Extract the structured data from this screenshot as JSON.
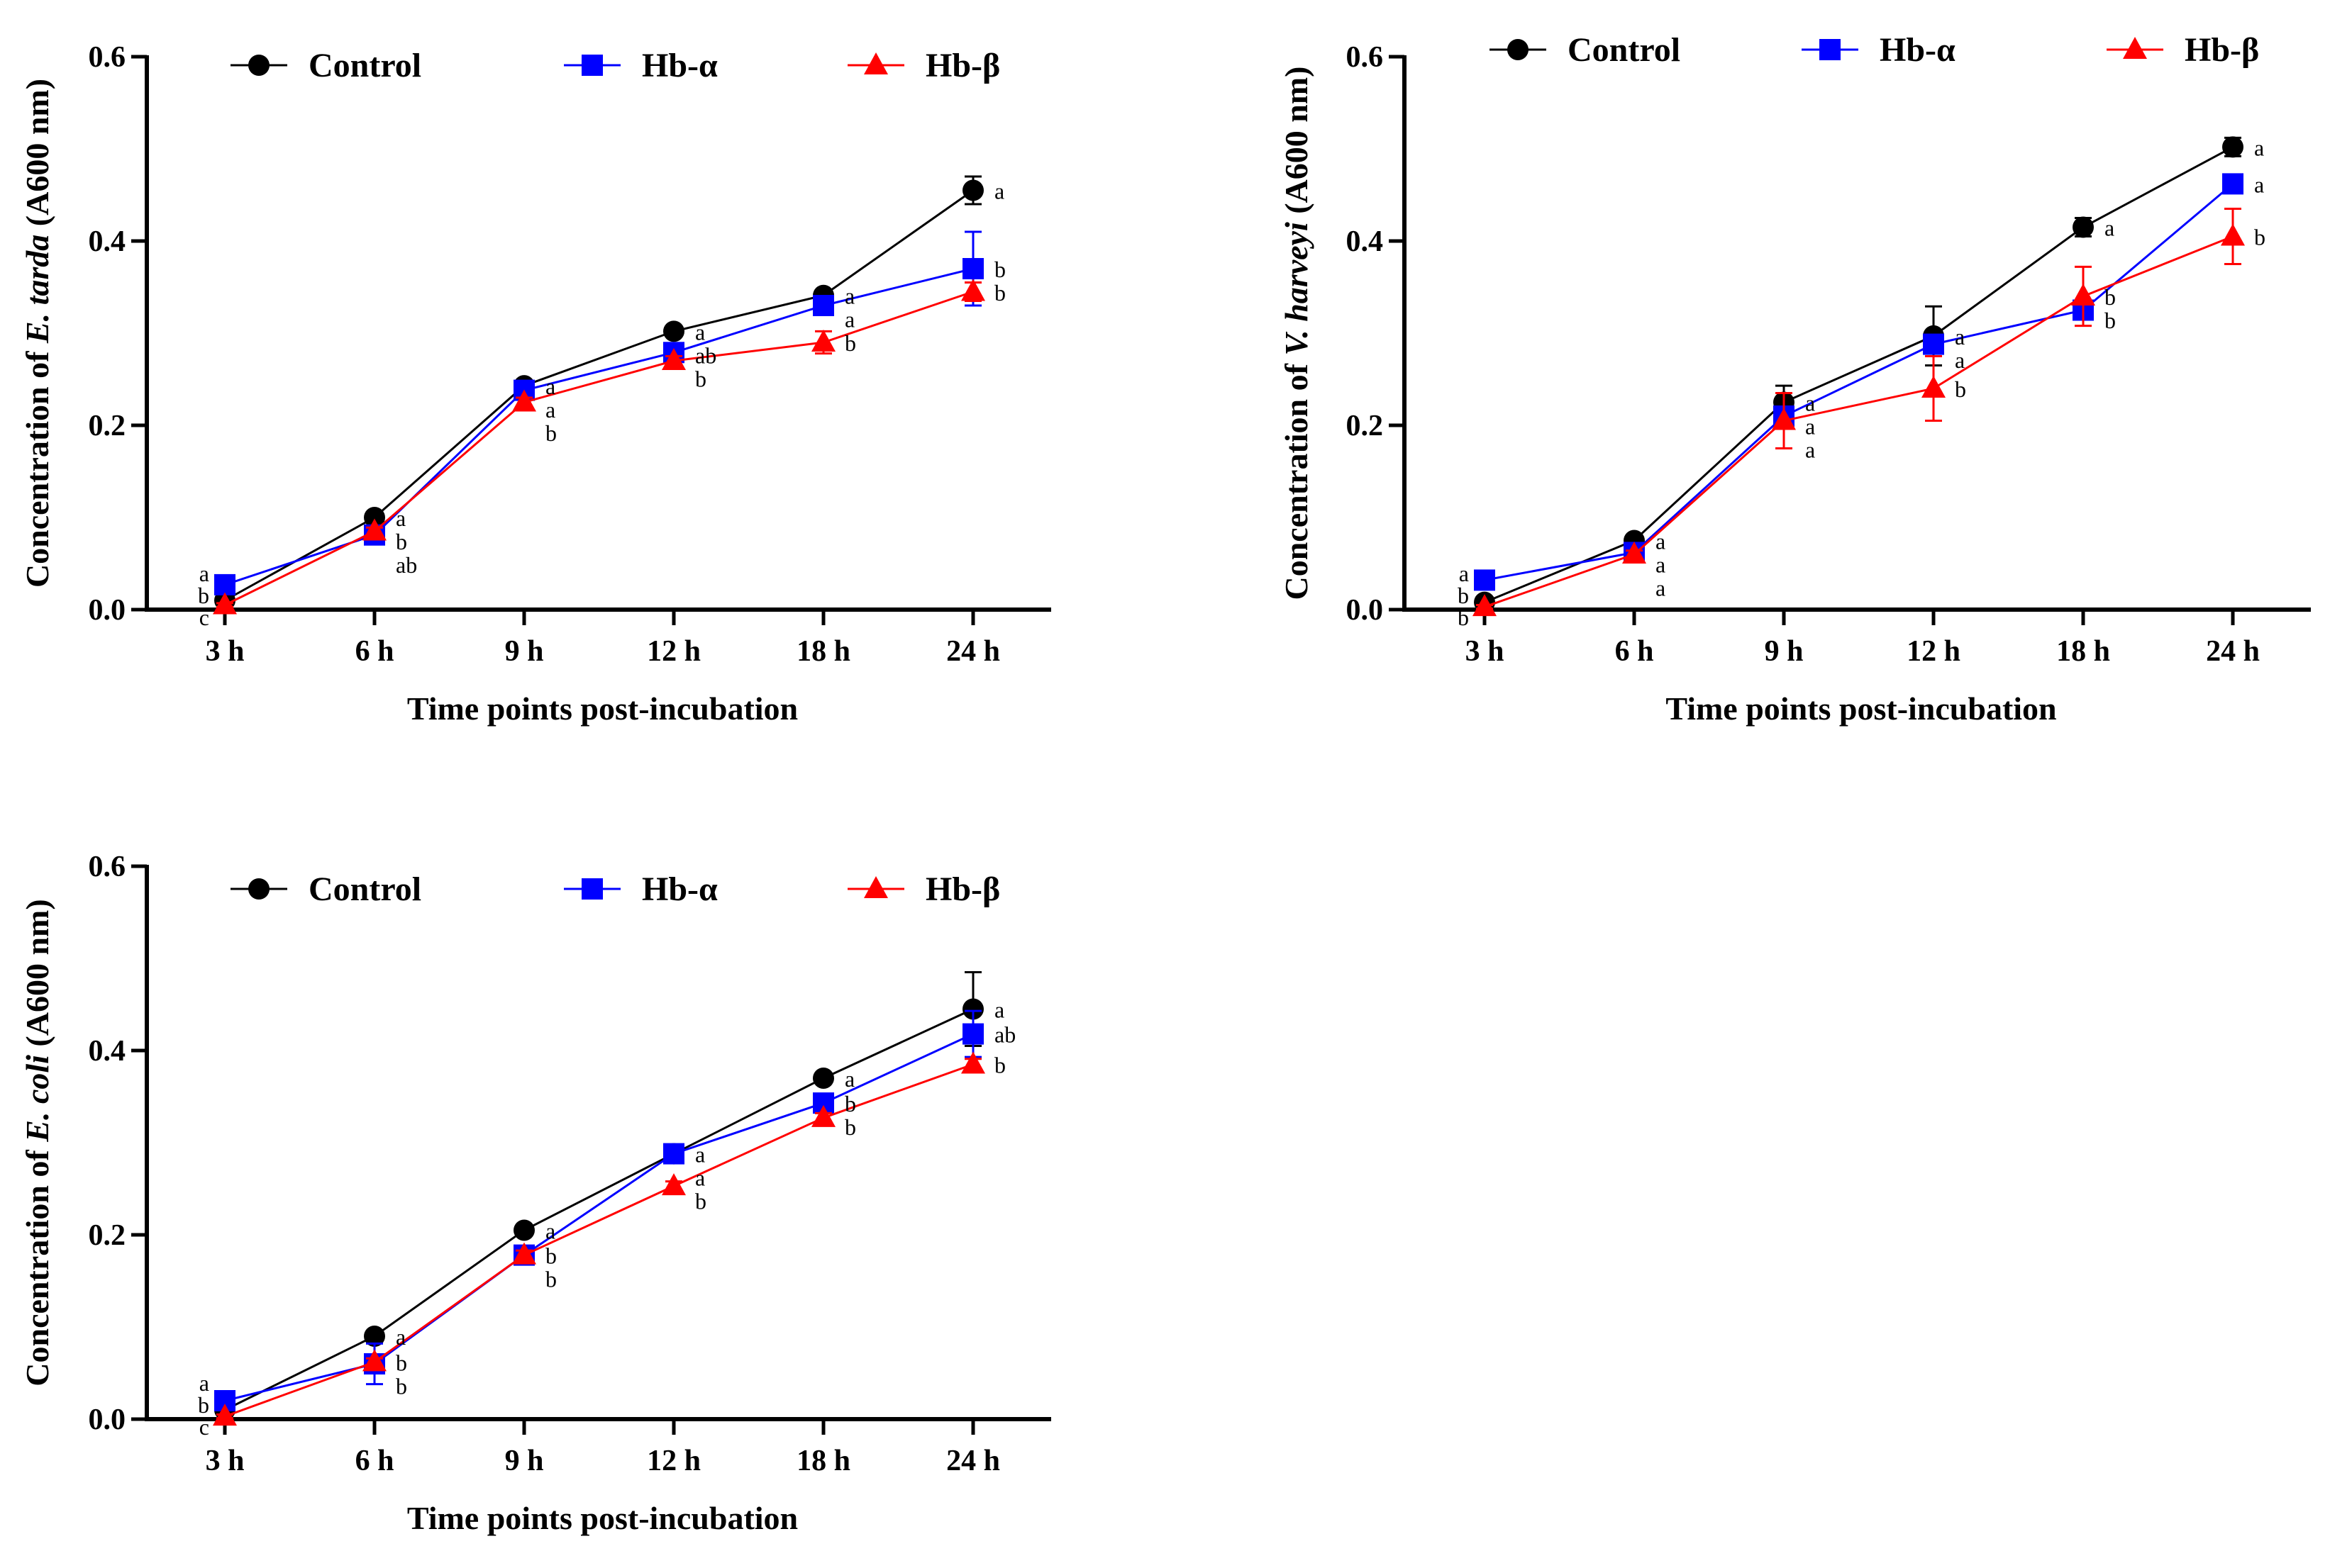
{
  "chart_data": [
    {
      "type": "line",
      "categories": [
        "3 h",
        "6 h",
        "9 h",
        "12 h",
        "18 h",
        "24 h"
      ],
      "xlabel": "Time points post-incubation",
      "ylabel_prefix": "Concentration of ",
      "ylabel_italic": "E. tarda",
      "ylabel_suffix": " (A600 nm)",
      "ylim": [
        0,
        0.6
      ],
      "yticks": [
        "0.0",
        "0.2",
        "0.4",
        "0.6"
      ],
      "series": [
        {
          "name": "Control",
          "color": "#000000",
          "marker": "circle",
          "values": [
            0.01,
            0.1,
            0.243,
            0.302,
            0.341,
            0.455
          ],
          "errors": [
            0.003,
            0.004,
            0.005,
            0.005,
            0.005,
            0.015
          ],
          "letters": [
            "a",
            "a",
            "a",
            "a",
            "a",
            "a"
          ]
        },
        {
          "name": "Hb-α",
          "color": "#0000ff",
          "marker": "square",
          "values": [
            0.027,
            0.081,
            0.238,
            0.279,
            0.33,
            0.37
          ],
          "errors": [
            0.003,
            0.004,
            0.005,
            0.006,
            0.006,
            0.04
          ],
          "letters": [
            "b",
            "ab",
            "a",
            "ab",
            "a",
            "b"
          ]
        },
        {
          "name": "Hb-β",
          "color": "#ff0000",
          "marker": "triangle",
          "values": [
            0.005,
            0.085,
            0.225,
            0.27,
            0.29,
            0.345
          ],
          "errors": [
            0.002,
            0.004,
            0.005,
            0.005,
            0.012,
            0.01
          ],
          "letters": [
            "c",
            "b",
            "b",
            "b",
            "b",
            "b"
          ]
        }
      ]
    },
    {
      "type": "line",
      "categories": [
        "3 h",
        "6 h",
        "9 h",
        "12 h",
        "18 h",
        "24 h"
      ],
      "xlabel": "Time points post-incubation",
      "ylabel_prefix": "Concentration of ",
      "ylabel_italic": "V. harveyi",
      "ylabel_suffix": " (A600 nm)",
      "ylim": [
        0,
        0.6
      ],
      "yticks": [
        "0.0",
        "0.2",
        "0.4",
        "0.6"
      ],
      "series": [
        {
          "name": "Control",
          "color": "#000000",
          "marker": "circle",
          "values": [
            0.008,
            0.075,
            0.225,
            0.297,
            0.415,
            0.502
          ],
          "errors": [
            0.003,
            0.004,
            0.018,
            0.032,
            0.01,
            0.01
          ],
          "letters": [
            "a",
            "a",
            "a",
            "a",
            "a",
            "a"
          ]
        },
        {
          "name": "Hb-α",
          "color": "#0000ff",
          "marker": "square",
          "values": [
            0.032,
            0.062,
            0.21,
            0.288,
            0.325,
            0.462
          ],
          "errors": [
            0.003,
            0.004,
            0.005,
            0.006,
            0.01,
            0.006
          ],
          "letters": [
            "b",
            "a",
            "a",
            "a",
            "b",
            "a"
          ]
        },
        {
          "name": "Hb-β",
          "color": "#ff0000",
          "marker": "triangle",
          "values": [
            0.003,
            0.06,
            0.205,
            0.24,
            0.34,
            0.405
          ],
          "errors": [
            0.002,
            0.004,
            0.03,
            0.035,
            0.032,
            0.03
          ],
          "letters": [
            "b",
            "a",
            "a",
            "b",
            "b",
            "b"
          ]
        }
      ]
    },
    {
      "type": "line",
      "categories": [
        "3 h",
        "6 h",
        "9 h",
        "12 h",
        "18 h",
        "24 h"
      ],
      "xlabel": "Time points post-incubation",
      "ylabel_prefix": "Concentration of ",
      "ylabel_italic": "E. coli",
      "ylabel_suffix": " (A600 nm)",
      "ylim": [
        0,
        0.6
      ],
      "yticks": [
        "0.0",
        "0.2",
        "0.4",
        "0.6"
      ],
      "series": [
        {
          "name": "Control",
          "color": "#000000",
          "marker": "circle",
          "values": [
            0.01,
            0.09,
            0.205,
            0.288,
            0.37,
            0.445
          ],
          "errors": [
            0.003,
            0.004,
            0.005,
            0.01,
            0.005,
            0.04
          ],
          "letters": [
            "a",
            "a",
            "a",
            "a",
            "a",
            "a"
          ]
        },
        {
          "name": "Hb-α",
          "color": "#0000ff",
          "marker": "square",
          "values": [
            0.02,
            0.06,
            0.178,
            0.288,
            0.343,
            0.418
          ],
          "errors": [
            0.003,
            0.022,
            0.005,
            0.006,
            0.006,
            0.025
          ],
          "letters": [
            "b",
            "b",
            "b",
            "a",
            "b",
            "ab"
          ]
        },
        {
          "name": "Hb-β",
          "color": "#ff0000",
          "marker": "triangle",
          "values": [
            0.003,
            0.062,
            0.178,
            0.253,
            0.327,
            0.385
          ],
          "errors": [
            0.002,
            0.004,
            0.005,
            0.005,
            0.005,
            0.006
          ],
          "letters": [
            "c",
            "b",
            "b",
            "b",
            "b",
            "b"
          ]
        }
      ]
    }
  ]
}
